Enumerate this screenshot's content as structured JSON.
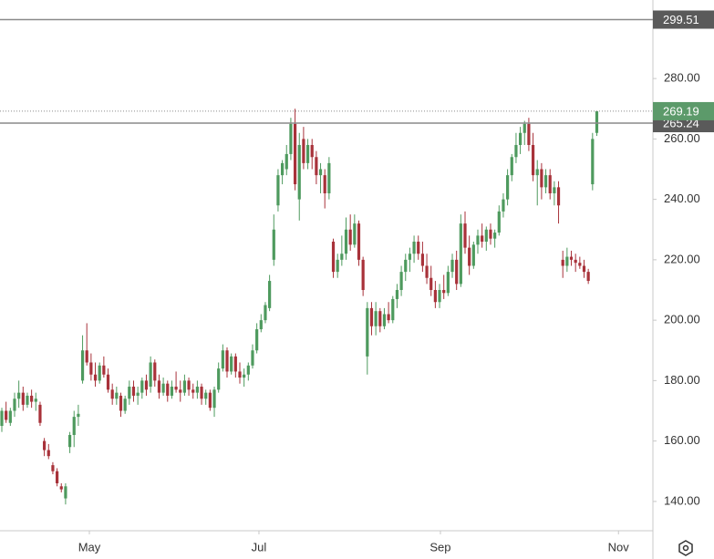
{
  "chart_data": {
    "type": "candlestick",
    "open": [
      165,
      170,
      166,
      170,
      174,
      176,
      172,
      175,
      173,
      172,
      160,
      157,
      152,
      150,
      145,
      141,
      158,
      162,
      168,
      180,
      190,
      186,
      182,
      180,
      185,
      182,
      177,
      174,
      175,
      170,
      174,
      178,
      175,
      176,
      180,
      178,
      186,
      180,
      176,
      179,
      175,
      178,
      177,
      176,
      180,
      177,
      176,
      178,
      174,
      176,
      171,
      177,
      184,
      190,
      183,
      188,
      183,
      181,
      182,
      185,
      190,
      197,
      200,
      204,
      220,
      238,
      248,
      250,
      255,
      265,
      240,
      260,
      252,
      258,
      254,
      248,
      248,
      242,
      226,
      216,
      220,
      222,
      230,
      225,
      232,
      220,
      188,
      204,
      198,
      203,
      198,
      202,
      200,
      207,
      210,
      216,
      220,
      222,
      226,
      222,
      218,
      214,
      210,
      206,
      210,
      209,
      216,
      220,
      212,
      232,
      224,
      218,
      225,
      228,
      226,
      230,
      227,
      229,
      236,
      240,
      248,
      254,
      258,
      262,
      265,
      258,
      248,
      250,
      244,
      248,
      242,
      244,
      220,
      218,
      221,
      220,
      219,
      218,
      216,
      245,
      262
    ],
    "high": [
      171,
      173,
      171,
      176,
      180,
      178,
      176,
      177,
      176,
      173,
      161,
      159,
      153,
      151,
      146,
      146,
      163,
      170,
      172,
      195,
      199,
      189,
      186,
      186,
      188,
      184,
      179,
      178,
      176,
      175,
      180,
      180,
      178,
      181,
      182,
      188,
      187,
      182,
      181,
      180,
      180,
      183,
      180,
      182,
      181,
      179,
      180,
      179,
      177,
      177,
      178,
      186,
      192,
      191,
      189,
      189,
      186,
      184,
      186,
      192,
      199,
      202,
      206,
      215,
      235,
      250,
      253,
      258,
      267,
      270,
      262,
      264,
      260,
      260,
      256,
      252,
      250,
      254,
      227,
      222,
      228,
      234,
      235,
      235,
      233,
      221,
      206,
      206,
      206,
      204,
      204,
      206,
      208,
      212,
      218,
      222,
      224,
      228,
      228,
      226,
      222,
      218,
      213,
      212,
      215,
      218,
      222,
      223,
      235,
      236,
      228,
      226,
      230,
      232,
      231,
      232,
      230,
      238,
      242,
      250,
      255,
      262,
      264,
      266,
      267,
      262,
      253,
      252,
      250,
      250,
      246,
      246,
      223,
      224,
      223,
      222,
      221,
      220,
      217,
      262,
      269.19
    ],
    "low": [
      163,
      166,
      165,
      168,
      171,
      170,
      171,
      171,
      170,
      165,
      155,
      154,
      149,
      145,
      143,
      139,
      156,
      158,
      165,
      179,
      185,
      180,
      178,
      179,
      181,
      176,
      172,
      172,
      168,
      169,
      172,
      173,
      172,
      174,
      175,
      176,
      178,
      174,
      175,
      173,
      174,
      176,
      173,
      175,
      175,
      174,
      174,
      172,
      172,
      170,
      168,
      176,
      183,
      181,
      182,
      181,
      179,
      178,
      180,
      184,
      189,
      196,
      199,
      203,
      218,
      236,
      245,
      248,
      253,
      243,
      233,
      250,
      250,
      250,
      245,
      242,
      237,
      240,
      214,
      214,
      218,
      220,
      223,
      224,
      218,
      208,
      182,
      195,
      195,
      196,
      197,
      199,
      199,
      204,
      208,
      213,
      216,
      219,
      220,
      216,
      212,
      208,
      204,
      204,
      207,
      208,
      214,
      210,
      211,
      222,
      215,
      217,
      222,
      224,
      223,
      225,
      224,
      228,
      234,
      238,
      246,
      252,
      255,
      258,
      256,
      246,
      238,
      240,
      242,
      240,
      238,
      232,
      214,
      216,
      218,
      216,
      217,
      214,
      212,
      243,
      261
    ],
    "close": [
      170,
      167,
      170,
      174,
      176,
      172,
      175,
      173,
      174,
      166,
      157,
      155,
      150,
      146,
      144,
      145,
      162,
      168,
      169,
      190,
      186,
      182,
      180,
      185,
      182,
      177,
      174,
      176,
      170,
      174,
      178,
      175,
      176,
      180,
      177,
      186,
      180,
      176,
      179,
      175,
      178,
      177,
      176,
      180,
      177,
      176,
      178,
      174,
      176,
      171,
      177,
      184,
      190,
      183,
      188,
      183,
      181,
      182,
      185,
      190,
      197,
      200,
      205,
      213,
      230,
      248,
      252,
      255,
      265,
      245,
      258,
      252,
      258,
      254,
      248,
      250,
      242,
      252,
      216,
      220,
      222,
      230,
      225,
      232,
      220,
      210,
      204,
      198,
      203,
      198,
      202,
      200,
      207,
      210,
      216,
      220,
      222,
      226,
      222,
      218,
      214,
      210,
      206,
      210,
      209,
      216,
      220,
      212,
      232,
      224,
      218,
      225,
      228,
      226,
      230,
      227,
      229,
      236,
      240,
      248,
      254,
      258,
      262,
      265,
      258,
      248,
      250,
      244,
      248,
      242,
      244,
      238,
      218,
      221,
      220,
      219,
      218,
      216,
      213,
      260,
      269.19
    ],
    "up_color": "#4e9a5e",
    "down_color": "#a8323a",
    "xlim": [
      -0.43,
      153.2
    ],
    "xticks": [
      {
        "value": 20.6,
        "label": "May"
      },
      {
        "value": 60.5,
        "label": "Jul"
      },
      {
        "value": 103.2,
        "label": "Sep"
      },
      {
        "value": 145.1,
        "label": "Nov"
      }
    ],
    "ylim": [
      130.3,
      306
    ],
    "yticks": [
      {
        "value": 140,
        "label": "140.00"
      },
      {
        "value": 160,
        "label": "160.00"
      },
      {
        "value": 180,
        "label": "180.00"
      },
      {
        "value": 200,
        "label": "200.00"
      },
      {
        "value": 220,
        "label": "220.00"
      },
      {
        "value": 240,
        "label": "240.00"
      },
      {
        "value": 260,
        "label": "260.00"
      },
      {
        "value": 280,
        "label": "280.00"
      }
    ],
    "price_lines": [
      299.51,
      265.24
    ],
    "price_line_color": "#8a8a8a",
    "last_price": 269.19,
    "last_price_color": "#5c9a6a"
  }
}
